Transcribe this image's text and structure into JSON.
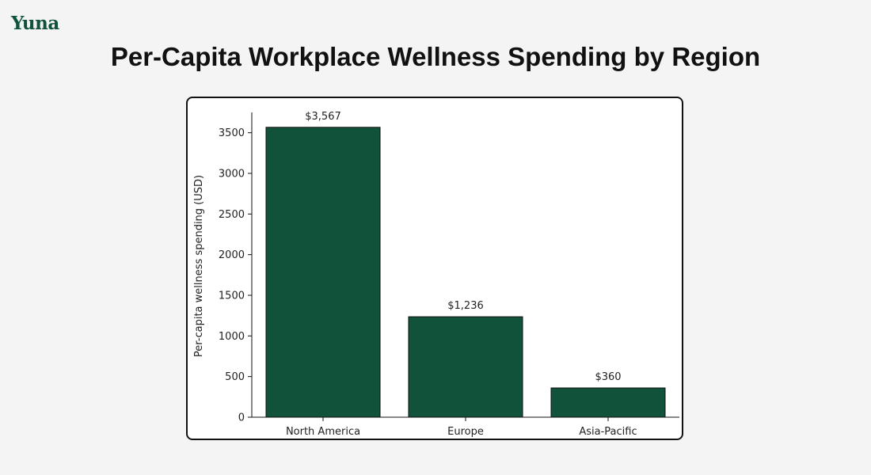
{
  "brand": {
    "logo_text": "Yuna",
    "accent_color": "#10523a"
  },
  "page": {
    "title": "Per-Capita Workplace Wellness Spending by Region"
  },
  "chart_data": {
    "type": "bar",
    "title": "",
    "xlabel": "",
    "ylabel": "Per-capita wellness spending (USD)",
    "categories": [
      "North America",
      "Europe",
      "Asia-Pacific"
    ],
    "values": [
      3567,
      1236,
      360
    ],
    "data_labels": [
      "$3,567",
      "$1,236",
      "$360"
    ],
    "ylim": [
      0,
      3750
    ],
    "yticks": [
      0,
      500,
      1000,
      1500,
      2000,
      2500,
      3000,
      3500
    ],
    "grid": false,
    "bar_color": "#10523a",
    "bar_edge_color": "#111111"
  }
}
